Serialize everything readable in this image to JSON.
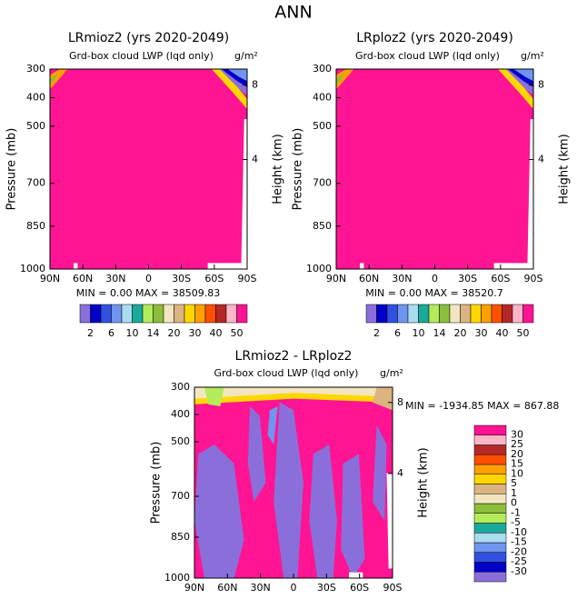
{
  "page_title": "ANN",
  "chart_data": [
    {
      "type": "contour",
      "title": "LRmioz2 (yrs 2020-2049)",
      "subtitle": "Grd-box cloud LWP (lqd only)",
      "units": "g/m²",
      "ylabel": "Pressure (mb)",
      "y2label": "Height (km)",
      "xlim": [
        90,
        -90
      ],
      "xticks": [
        {
          "value": 90,
          "label": "90N"
        },
        {
          "value": 60,
          "label": "60N"
        },
        {
          "value": 30,
          "label": "30N"
        },
        0,
        {
          "value": -30,
          "label": "30S"
        },
        {
          "value": -60,
          "label": "60S"
        },
        {
          "value": -90,
          "label": "90S"
        }
      ],
      "ylim": [
        1000,
        300
      ],
      "yticks": [
        300,
        400,
        500,
        700,
        850,
        1000
      ],
      "y2ticks": [
        8,
        4
      ],
      "min_text": "MIN =",
      "min": {
        "value": 0,
        "label": "0.00"
      },
      "max_text": "MAX =",
      "max": 38509.83,
      "colors": [
        "#8a6fdb",
        "#0000c8",
        "#3050e0",
        "#6f95ee",
        "#a8dcee",
        "#19aa9c",
        "#b4eb5a",
        "#8cbe3c",
        "#f2e6c0",
        "#dcb482",
        "#ffd700",
        "#ffa000",
        "#ff5000",
        "#b42828",
        "#ffb4c8",
        "#ff1493"
      ],
      "colorbar_ticks": [
        2,
        6,
        10,
        14,
        20,
        30,
        40,
        50
      ]
    },
    {
      "type": "contour",
      "title": "LRploz2 (yrs 2020-2049)",
      "subtitle": "Grd-box cloud LWP (lqd only)",
      "units": "g/m²",
      "ylabel": "Pressure (mb)",
      "y2label": "Height (km)",
      "xlim": [
        90,
        -90
      ],
      "xticks": [
        {
          "value": 90,
          "label": "90N"
        },
        {
          "value": 60,
          "label": "60N"
        },
        {
          "value": 30,
          "label": "30N"
        },
        0,
        {
          "value": -30,
          "label": "30S"
        },
        {
          "value": -60,
          "label": "60S"
        },
        {
          "value": -90,
          "label": "90S"
        }
      ],
      "ylim": [
        1000,
        300
      ],
      "yticks": [
        300,
        400,
        500,
        700,
        850,
        1000
      ],
      "y2ticks": [
        8,
        4
      ],
      "min_text": "MIN =",
      "min": {
        "value": 0,
        "label": "0.00"
      },
      "max_text": "MAX =",
      "max": 38520.7,
      "colors": [
        "#8a6fdb",
        "#0000c8",
        "#3050e0",
        "#6f95ee",
        "#a8dcee",
        "#19aa9c",
        "#b4eb5a",
        "#8cbe3c",
        "#f2e6c0",
        "#dcb482",
        "#ffd700",
        "#ffa000",
        "#ff5000",
        "#b42828",
        "#ffb4c8",
        "#ff1493"
      ],
      "colorbar_ticks": [
        2,
        6,
        10,
        14,
        20,
        30,
        40,
        50
      ]
    },
    {
      "type": "contour",
      "title": "LRmioz2 - LRploz2",
      "subtitle": "Grd-box cloud LWP (lqd only)",
      "units": "g/m²",
      "ylabel": "Pressure (mb)",
      "y2label": "Height (km)",
      "xlim": [
        90,
        -90
      ],
      "xticks": [
        {
          "value": 90,
          "label": "90N"
        },
        {
          "value": 60,
          "label": "60N"
        },
        {
          "value": 30,
          "label": "30N"
        },
        0,
        {
          "value": -30,
          "label": "30S"
        },
        {
          "value": -60,
          "label": "60S"
        },
        {
          "value": -90,
          "label": "90S"
        }
      ],
      "ylim": [
        1000,
        300
      ],
      "yticks": [
        300,
        400,
        500,
        700,
        850,
        1000
      ],
      "y2ticks": [
        8,
        4
      ],
      "min_text": "MIN =",
      "min": -1934.85,
      "max_text": "MAX =",
      "max": 867.88,
      "colors": [
        "#8a6fdb",
        "#0000c8",
        "#3050e0",
        "#6f95ee",
        "#a8dcee",
        "#19aa9c",
        "#b4eb5a",
        "#8cbe3c",
        "#f2e6c0",
        "#dcb482",
        "#ffd700",
        "#ffa000",
        "#ff5000",
        "#b42828",
        "#ffb4c8",
        "#ff1493"
      ],
      "colorbar_ticks": [
        30,
        25,
        20,
        15,
        10,
        5,
        1,
        0,
        -1,
        -5,
        -10,
        -15,
        -20,
        -25,
        -30
      ]
    }
  ]
}
